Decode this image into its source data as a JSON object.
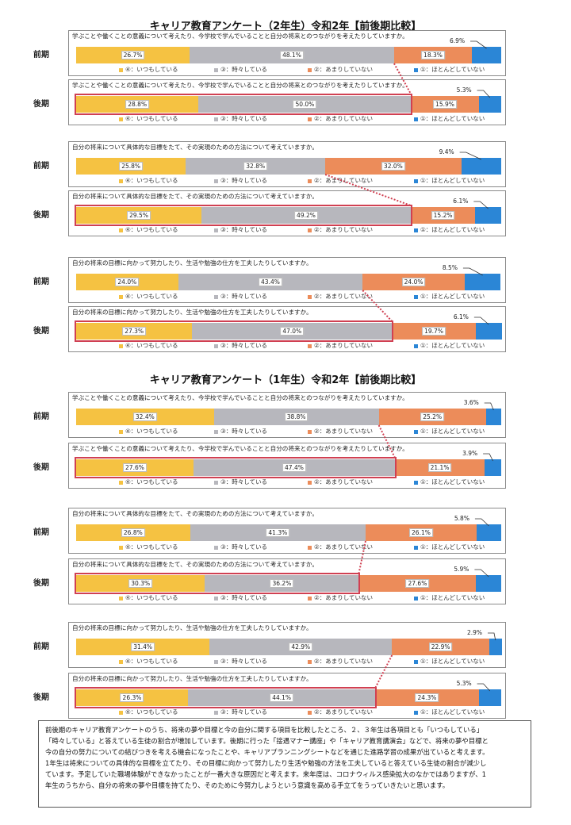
{
  "colors": {
    "always": "#f5c242",
    "sometimes": "#b7b7bd",
    "rarely": "#ec8c5a",
    "hardly": "#2b86d6",
    "highlight": "#d04052"
  },
  "legend": [
    "④：いつもしている",
    "③：時々している",
    "②：あまりしていない",
    "①：ほとんどしていない"
  ],
  "sections": [
    {
      "title": "キャリア教育アンケート（2年生）令和2年【前後期比較】"
    },
    {
      "title": "キャリア教育アンケート（1年生）令和2年【前後期比較】"
    }
  ],
  "chart_data": [
    {
      "type": "bar",
      "stacked": true,
      "orientation": "horizontal",
      "grade": "2年生",
      "question": "学ぶことや働くことの意義について考えたり、今学校で学んでいることと自分の将来とのつながりを考えたりしていますか。",
      "categories": [
        "前期",
        "後期"
      ],
      "series": [
        {
          "name": "④：いつもしている",
          "values": [
            26.7,
            28.8
          ]
        },
        {
          "name": "③：時々している",
          "values": [
            48.1,
            50.0
          ]
        },
        {
          "name": "②：あまりしていない",
          "values": [
            18.3,
            15.9
          ]
        },
        {
          "name": "①：ほとんどしていない",
          "values": [
            6.9,
            5.3
          ]
        }
      ],
      "value_labels": [
        [
          "26.7%",
          "48.1%",
          "18.3%",
          "6.9%"
        ],
        [
          "28.8%",
          "50.0%",
          "15.9%",
          "5.3%"
        ]
      ]
    },
    {
      "type": "bar",
      "stacked": true,
      "orientation": "horizontal",
      "grade": "2年生",
      "question": "自分の将来について具体的な目標をたて、その実現のための方法について考えていますか。",
      "categories": [
        "前期",
        "後期"
      ],
      "series": [
        {
          "name": "④：いつもしている",
          "values": [
            25.8,
            29.5
          ]
        },
        {
          "name": "③：時々している",
          "values": [
            32.8,
            49.2
          ]
        },
        {
          "name": "②：あまりしていない",
          "values": [
            32.0,
            15.2
          ]
        },
        {
          "name": "①：ほとんどしていない",
          "values": [
            9.4,
            6.1
          ]
        }
      ],
      "value_labels": [
        [
          "25.8%",
          "32.8%",
          "32.0%",
          "9.4%"
        ],
        [
          "29.5%",
          "49.2%",
          "15.2%",
          "6.1%"
        ]
      ]
    },
    {
      "type": "bar",
      "stacked": true,
      "orientation": "horizontal",
      "grade": "2年生",
      "question": "自分の将来の目標に向かって努力したり、生活や勉強の仕方を工夫したりしていますか。",
      "categories": [
        "前期",
        "後期"
      ],
      "series": [
        {
          "name": "④：いつもしている",
          "values": [
            24.0,
            27.3
          ]
        },
        {
          "name": "③：時々している",
          "values": [
            43.4,
            47.0
          ]
        },
        {
          "name": "②：あまりしていない",
          "values": [
            24.0,
            19.7
          ]
        },
        {
          "name": "①：ほとんどしていない",
          "values": [
            8.5,
            6.1
          ]
        }
      ],
      "value_labels": [
        [
          "24.0%",
          "43.4%",
          "24.0%",
          "8.5%"
        ],
        [
          "27.3%",
          "47.0%",
          "19.7%",
          "6.1%"
        ]
      ]
    },
    {
      "type": "bar",
      "stacked": true,
      "orientation": "horizontal",
      "grade": "1年生",
      "question": "学ぶことや働くことの意義について考えたり、今学校で学んでいることと自分の将来とのつながりを考えたりしていますか。",
      "categories": [
        "前期",
        "後期"
      ],
      "series": [
        {
          "name": "④：いつもしている",
          "values": [
            32.4,
            27.6
          ]
        },
        {
          "name": "③：時々している",
          "values": [
            38.8,
            47.4
          ]
        },
        {
          "name": "②：あまりしていない",
          "values": [
            25.2,
            21.1
          ]
        },
        {
          "name": "①：ほとんどしていない",
          "values": [
            3.6,
            3.9
          ]
        }
      ],
      "value_labels": [
        [
          "32.4%",
          "38.8%",
          "25.2%",
          "3.6%"
        ],
        [
          "27.6%",
          "47.4%",
          "21.1%",
          "3.9%"
        ]
      ]
    },
    {
      "type": "bar",
      "stacked": true,
      "orientation": "horizontal",
      "grade": "1年生",
      "question": "自分の将来について具体的な目標をたて、その実現のための方法について考えていますか。",
      "categories": [
        "前期",
        "後期"
      ],
      "series": [
        {
          "name": "④：いつもしている",
          "values": [
            26.8,
            30.3
          ]
        },
        {
          "name": "③：時々している",
          "values": [
            41.3,
            36.2
          ]
        },
        {
          "name": "②：あまりしていない",
          "values": [
            26.1,
            27.6
          ]
        },
        {
          "name": "①：ほとんどしていない",
          "values": [
            5.8,
            5.9
          ]
        }
      ],
      "value_labels": [
        [
          "26.8%",
          "41.3%",
          "26.1%",
          "5.8%"
        ],
        [
          "30.3%",
          "36.2%",
          "27.6%",
          "5.9%"
        ]
      ]
    },
    {
      "type": "bar",
      "stacked": true,
      "orientation": "horizontal",
      "grade": "1年生",
      "question": "自分の将来の目標に向かって努力したり、生活や勉強の仕方を工夫したりしていますか。",
      "categories": [
        "前期",
        "後期"
      ],
      "series": [
        {
          "name": "④：いつもしている",
          "values": [
            31.4,
            26.3
          ]
        },
        {
          "name": "③：時々している",
          "values": [
            42.9,
            44.1
          ]
        },
        {
          "name": "②：あまりしていない",
          "values": [
            22.9,
            24.3
          ]
        },
        {
          "name": "①：ほとんどしていない",
          "values": [
            2.9,
            5.3
          ]
        }
      ],
      "value_labels": [
        [
          "31.4%",
          "42.9%",
          "22.9%",
          "2.9%"
        ],
        [
          "26.3%",
          "44.1%",
          "24.3%",
          "5.3%"
        ]
      ]
    }
  ],
  "summary": {
    "lines": [
      "前後期のキャリア教育アンケートのうち、将来の夢や目標と今の自分に関する項目を比較したところ、２、３年生は各項目とも「いつもしている」",
      "「時々している」と答えている生徒の割合が増加しています。後期に行った「接遇マナー講座」や「キャリア教育講演会」などで、将来の夢や目標と",
      "今の自分の努力についての結びつきを考える機会になったことや、キャリアプランニングシートなどを通じた進路学習の成果が出ていると考えます。",
      "1年生は将来についての具体的な目標を立てたり、その目標に向かって努力したり生活や勉強の方法を工夫していると答えている生徒の割合が減少し",
      "ています。予定していた職場体験ができなかったことが一番大きな原因だと考えます。来年度は、コロナウィルス感染拡大のなかではありますが、1",
      "年生のうちから、自分の将来の夢や目標を持てたり、そのために今努力しようという意識を高める手立てをうっていきたいと思います。"
    ]
  }
}
